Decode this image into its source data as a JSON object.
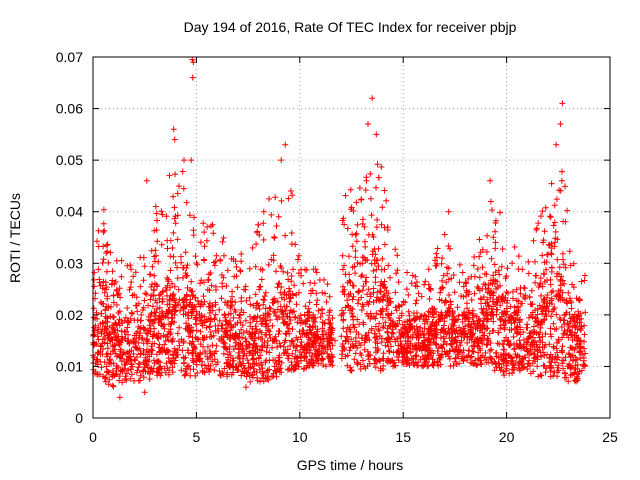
{
  "chart_data": {
    "type": "scatter",
    "title": "Day 194 of 2016, Rate Of TEC Index for receiver pbjp",
    "xlabel": "GPS time / hours",
    "ylabel": "ROTI / TECUs",
    "xlim": [
      0,
      25
    ],
    "ylim": [
      0,
      0.07
    ],
    "x_ticks": [
      0,
      5,
      10,
      15,
      20,
      25
    ],
    "x_tick_labels": [
      "0",
      "5",
      "10",
      "15",
      "20",
      "25"
    ],
    "y_ticks": [
      0,
      0.01,
      0.02,
      0.03,
      0.04,
      0.05,
      0.06,
      0.07
    ],
    "y_tick_labels": [
      "0",
      "0.01",
      "0.02",
      "0.03",
      "0.04",
      "0.05",
      "0.06",
      "0.07"
    ],
    "grid": true,
    "marker": "plus",
    "color": "#ff0000",
    "series": [
      {
        "envelope": {
          "x": [
            0,
            0.5,
            1,
            1.5,
            2,
            2.5,
            3,
            3.5,
            4,
            4.5,
            5,
            5.5,
            6,
            6.5,
            7,
            7.5,
            8,
            8.5,
            9,
            9.5,
            10,
            10.5,
            11,
            11.5,
            12,
            12.5,
            13,
            13.5,
            14,
            14.5,
            15,
            15.5,
            16,
            16.5,
            17,
            17.5,
            18,
            18.5,
            19,
            19.5,
            20,
            20.5,
            21,
            21.5,
            22,
            22.5,
            23,
            23.5
          ],
          "lower": [
            0.009,
            0.007,
            0.006,
            0.007,
            0.007,
            0.007,
            0.008,
            0.008,
            0.009,
            0.008,
            0.008,
            0.008,
            0.008,
            0.008,
            0.008,
            0.008,
            0.007,
            0.007,
            0.008,
            0.009,
            0.009,
            0.01,
            0.01,
            0.01,
            0.01,
            0.009,
            0.008,
            0.009,
            0.009,
            0.01,
            0.01,
            0.01,
            0.01,
            0.01,
            0.01,
            0.01,
            0.011,
            0.01,
            0.01,
            0.009,
            0.008,
            0.009,
            0.008,
            0.008,
            0.008,
            0.008,
            0.007,
            0.007
          ],
          "upper": [
            0.033,
            0.042,
            0.03,
            0.032,
            0.03,
            0.032,
            0.042,
            0.04,
            0.05,
            0.048,
            0.04,
            0.04,
            0.037,
            0.035,
            0.034,
            0.03,
            0.038,
            0.043,
            0.045,
            0.048,
            0.03,
            0.03,
            0.03,
            0.026,
            0.045,
            0.047,
            0.05,
            0.057,
            0.048,
            0.035,
            0.028,
            0.03,
            0.028,
            0.032,
            0.04,
            0.03,
            0.03,
            0.033,
            0.04,
            0.045,
            0.035,
            0.033,
            0.03,
            0.038,
            0.048,
            0.058,
            0.038,
            0.028
          ]
        },
        "gaps": [
          [
            11.6,
            12.0
          ],
          [
            23.8,
            25
          ]
        ],
        "point_count": 4500,
        "outliers": [
          [
            4.8,
            0.0695
          ],
          [
            4.85,
            0.069
          ],
          [
            4.82,
            0.066
          ],
          [
            4.75,
            0.05
          ],
          [
            13.5,
            0.062
          ],
          [
            13.3,
            0.057
          ],
          [
            13.7,
            0.055
          ],
          [
            22.7,
            0.061
          ],
          [
            22.4,
            0.053
          ],
          [
            22.6,
            0.057
          ],
          [
            3.9,
            0.056
          ],
          [
            3.95,
            0.054
          ],
          [
            3.7,
            0.047
          ],
          [
            4.4,
            0.05
          ],
          [
            9.3,
            0.053
          ],
          [
            9.1,
            0.05
          ],
          [
            2.6,
            0.046
          ],
          [
            1.3,
            0.004
          ],
          [
            2.5,
            0.005
          ],
          [
            7.4,
            0.006
          ],
          [
            7.6,
            0.007
          ],
          [
            19.2,
            0.046
          ],
          [
            17.2,
            0.04
          ],
          [
            11.7,
            0.015
          ]
        ]
      }
    ]
  }
}
